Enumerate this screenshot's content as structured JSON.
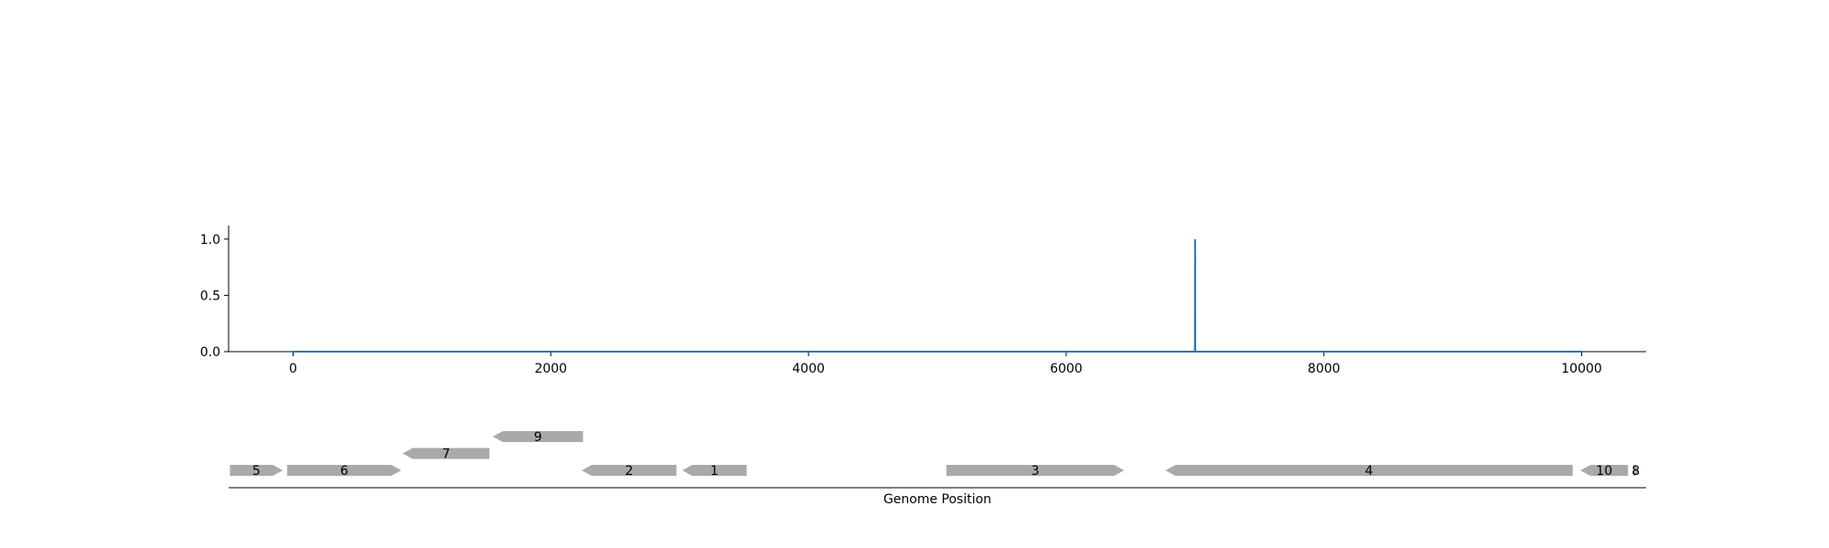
{
  "chart_data": [
    {
      "type": "line",
      "title": "",
      "xlabel": "",
      "ylabel": "",
      "xlim": [
        -500,
        10500
      ],
      "ylim": [
        0,
        1.12
      ],
      "x_ticks": [
        0,
        2000,
        4000,
        6000,
        8000,
        10000
      ],
      "y_ticks": [
        0.0,
        0.5,
        1.0
      ],
      "y_tick_labels": [
        "0.0",
        "0.5",
        "1.0"
      ],
      "grid": false,
      "series": [
        {
          "color": "#1f77b4",
          "x": [
            0,
            6999,
            7000,
            7001,
            10000
          ],
          "y": [
            0,
            0,
            1.0,
            0,
            0
          ]
        }
      ]
    },
    {
      "type": "gene-track",
      "xlabel": "Genome Position",
      "xlim": [
        -500,
        10500
      ],
      "feature_color": "#a9a9a9",
      "features": [
        {
          "label": "5",
          "start": -490,
          "end": -80,
          "strand": 1,
          "row": 0
        },
        {
          "label": "6",
          "start": -45,
          "end": 840,
          "strand": 1,
          "row": 0
        },
        {
          "label": "7",
          "start": 850,
          "end": 1525,
          "strand": -1,
          "row": 1
        },
        {
          "label": "9",
          "start": 1550,
          "end": 2250,
          "strand": -1,
          "row": 2
        },
        {
          "label": "2",
          "start": 2240,
          "end": 2975,
          "strand": -1,
          "row": 0
        },
        {
          "label": "1",
          "start": 3020,
          "end": 3520,
          "strand": -1,
          "row": 0
        },
        {
          "label": "3",
          "start": 5070,
          "end": 6450,
          "strand": 1,
          "row": 0
        },
        {
          "label": "4",
          "start": 6770,
          "end": 9930,
          "strand": -1,
          "row": 0
        },
        {
          "label": "10",
          "start": 9990,
          "end": 10360,
          "strand": -1,
          "row": 0
        },
        {
          "label": "8",
          "start": 10400,
          "end": 10440,
          "strand": 1,
          "row": 0
        }
      ]
    }
  ]
}
